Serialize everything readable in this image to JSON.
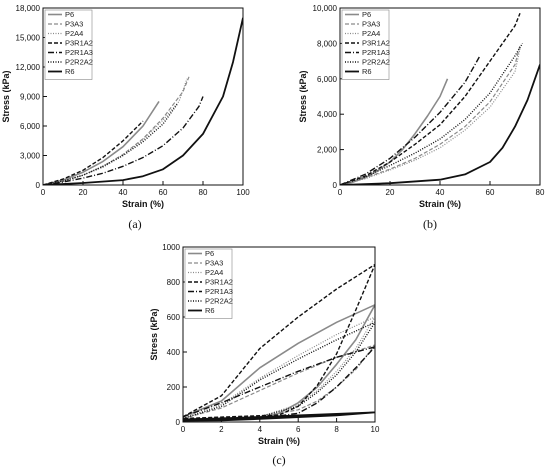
{
  "styles": {
    "P6": {
      "color": "#8a8a8a",
      "dash": "",
      "width": 1.6
    },
    "P3A3": {
      "color": "#8a8a8a",
      "dash": "4,2",
      "width": 1.2
    },
    "P2A4": {
      "color": "#8a8a8a",
      "dash": "1,1.5",
      "width": 1.2
    },
    "P3R1A2": {
      "color": "#111111",
      "dash": "4,2",
      "width": 1.4
    },
    "P2R1A3": {
      "color": "#111111",
      "dash": "6,2,1,2",
      "width": 1.4
    },
    "P2R2A2": {
      "color": "#111111",
      "dash": "1,1.5",
      "width": 1.4
    },
    "R6": {
      "color": "#111111",
      "dash": "",
      "width": 1.8
    }
  },
  "chart_data": [
    {
      "type": "line",
      "caption": "(a)",
      "xlabel": "Strain (%)",
      "ylabel": "Stress (kPa)",
      "xlim": [
        0,
        100
      ],
      "ylim": [
        0,
        18000
      ],
      "xticks": [
        "0",
        "20",
        "40",
        "60",
        "80",
        "100"
      ],
      "yticks": [
        "0",
        "3,000",
        "6,000",
        "9,000",
        "12,000",
        "15,000",
        "18,000"
      ],
      "legend_position": "top-left",
      "series": [
        {
          "name": "P6",
          "points": [
            [
              0,
              0
            ],
            [
              10,
              500
            ],
            [
              20,
              1300
            ],
            [
              30,
              2400
            ],
            [
              40,
              3900
            ],
            [
              50,
              6000
            ],
            [
              58,
              8500
            ]
          ]
        },
        {
          "name": "P3A3",
          "points": [
            [
              0,
              0
            ],
            [
              10,
              400
            ],
            [
              20,
              1000
            ],
            [
              30,
              1900
            ],
            [
              40,
              3100
            ],
            [
              50,
              4700
            ],
            [
              60,
              6800
            ],
            [
              70,
              9500
            ],
            [
              73,
              11000
            ]
          ]
        },
        {
          "name": "P2A4",
          "points": [
            [
              0,
              0
            ],
            [
              10,
              400
            ],
            [
              20,
              1000
            ],
            [
              30,
              1800
            ],
            [
              40,
              3000
            ],
            [
              50,
              4600
            ],
            [
              60,
              6600
            ],
            [
              68,
              8500
            ],
            [
              72,
              10800
            ]
          ]
        },
        {
          "name": "P3R1A2",
          "points": [
            [
              0,
              0
            ],
            [
              10,
              600
            ],
            [
              20,
              1500
            ],
            [
              30,
              2800
            ],
            [
              40,
              4500
            ],
            [
              50,
              6500
            ]
          ]
        },
        {
          "name": "P2R1A3",
          "points": [
            [
              0,
              0
            ],
            [
              10,
              300
            ],
            [
              20,
              700
            ],
            [
              30,
              1200
            ],
            [
              40,
              1900
            ],
            [
              50,
              2800
            ],
            [
              60,
              4000
            ],
            [
              70,
              5800
            ],
            [
              78,
              8000
            ],
            [
              80,
              9000
            ]
          ]
        },
        {
          "name": "P2R2A2",
          "points": [
            [
              0,
              0
            ],
            [
              10,
              400
            ],
            [
              20,
              1000
            ],
            [
              30,
              1900
            ],
            [
              40,
              3000
            ],
            [
              50,
              4400
            ],
            [
              60,
              6200
            ],
            [
              67,
              8200
            ]
          ]
        },
        {
          "name": "R6",
          "points": [
            [
              0,
              0
            ],
            [
              20,
              200
            ],
            [
              40,
              500
            ],
            [
              50,
              900
            ],
            [
              60,
              1600
            ],
            [
              70,
              3000
            ],
            [
              80,
              5200
            ],
            [
              90,
              9000
            ],
            [
              95,
              12500
            ],
            [
              100,
              17000
            ]
          ]
        }
      ]
    },
    {
      "type": "line",
      "caption": "(b)",
      "xlabel": "Strain (%)",
      "ylabel": "Stress (kPa)",
      "xlim": [
        0,
        80
      ],
      "ylim": [
        0,
        10000
      ],
      "xticks": [
        "0",
        "20",
        "40",
        "60",
        "80"
      ],
      "yticks": [
        "0",
        "2,000",
        "4,000",
        "6,000",
        "8,000",
        "10,000"
      ],
      "legend_position": "top-left",
      "series": [
        {
          "name": "P6",
          "points": [
            [
              0,
              0
            ],
            [
              5,
              150
            ],
            [
              10,
              400
            ],
            [
              15,
              800
            ],
            [
              20,
              1300
            ],
            [
              25,
              2000
            ],
            [
              30,
              2900
            ],
            [
              35,
              3900
            ],
            [
              40,
              5000
            ],
            [
              43,
              6000
            ]
          ]
        },
        {
          "name": "P3A3",
          "points": [
            [
              0,
              0
            ],
            [
              10,
              400
            ],
            [
              20,
              900
            ],
            [
              30,
              1500
            ],
            [
              40,
              2300
            ],
            [
              50,
              3300
            ],
            [
              60,
              4700
            ],
            [
              70,
              6800
            ],
            [
              72,
              7900
            ]
          ]
        },
        {
          "name": "P2A4",
          "points": [
            [
              0,
              0
            ],
            [
              10,
              350
            ],
            [
              20,
              850
            ],
            [
              30,
              1400
            ],
            [
              40,
              2100
            ],
            [
              50,
              3100
            ],
            [
              60,
              4400
            ],
            [
              70,
              6400
            ],
            [
              72,
              7700
            ]
          ]
        },
        {
          "name": "P3R1A2",
          "points": [
            [
              0,
              0
            ],
            [
              10,
              500
            ],
            [
              20,
              1300
            ],
            [
              30,
              2300
            ],
            [
              40,
              3400
            ],
            [
              50,
              5000
            ],
            [
              60,
              7000
            ],
            [
              70,
              9000
            ],
            [
              72,
              9700
            ]
          ]
        },
        {
          "name": "P2R1A3",
          "points": [
            [
              0,
              0
            ],
            [
              10,
              600
            ],
            [
              20,
              1500
            ],
            [
              30,
              2700
            ],
            [
              40,
              4100
            ],
            [
              50,
              5800
            ],
            [
              56,
              7300
            ]
          ]
        },
        {
          "name": "P2R2A2",
          "points": [
            [
              0,
              0
            ],
            [
              10,
              450
            ],
            [
              20,
              1100
            ],
            [
              30,
              1800
            ],
            [
              40,
              2600
            ],
            [
              50,
              3700
            ],
            [
              60,
              5200
            ],
            [
              70,
              7300
            ],
            [
              73,
              8000
            ]
          ]
        },
        {
          "name": "R6",
          "points": [
            [
              0,
              0
            ],
            [
              20,
              100
            ],
            [
              40,
              300
            ],
            [
              50,
              600
            ],
            [
              60,
              1300
            ],
            [
              65,
              2100
            ],
            [
              70,
              3300
            ],
            [
              75,
              4800
            ],
            [
              80,
              6800
            ]
          ]
        }
      ]
    },
    {
      "type": "line",
      "caption": "(c)",
      "xlabel": "Strain (%)",
      "ylabel": "Stress (kPa)",
      "xlim": [
        0,
        10
      ],
      "ylim": [
        0,
        1000
      ],
      "xticks": [
        "0",
        "2",
        "4",
        "6",
        "8",
        "10"
      ],
      "yticks": [
        "0",
        "200",
        "400",
        "600",
        "800",
        "1000"
      ],
      "legend_position": "top-left",
      "series": [
        {
          "name": "P6",
          "points": [
            [
              0,
              30
            ],
            [
              2,
              120
            ],
            [
              4,
              310
            ],
            [
              6,
              450
            ],
            [
              8,
              570
            ],
            [
              10,
              670
            ],
            [
              9,
              470
            ],
            [
              8,
              330
            ],
            [
              7,
              200
            ],
            [
              6,
              110
            ],
            [
              5,
              50
            ],
            [
              4,
              20
            ],
            [
              3,
              15
            ],
            [
              0,
              15
            ]
          ]
        },
        {
          "name": "P3A3",
          "points": [
            [
              0,
              20
            ],
            [
              2,
              80
            ],
            [
              4,
              180
            ],
            [
              6,
              280
            ],
            [
              8,
              370
            ],
            [
              10,
              440
            ],
            [
              9,
              300
            ],
            [
              8,
              200
            ],
            [
              7,
              120
            ],
            [
              6,
              70
            ],
            [
              4,
              30
            ],
            [
              0,
              15
            ]
          ]
        },
        {
          "name": "P2A4",
          "points": [
            [
              0,
              20
            ],
            [
              2,
              100
            ],
            [
              4,
              250
            ],
            [
              6,
              380
            ],
            [
              8,
              500
            ],
            [
              10,
              600
            ],
            [
              9,
              420
            ],
            [
              8,
              290
            ],
            [
              7,
              180
            ],
            [
              6,
              100
            ],
            [
              4,
              30
            ],
            [
              0,
              15
            ]
          ]
        },
        {
          "name": "P3R1A2",
          "points": [
            [
              0,
              30
            ],
            [
              2,
              150
            ],
            [
              4,
              420
            ],
            [
              6,
              600
            ],
            [
              8,
              760
            ],
            [
              10,
              900
            ],
            [
              9,
              640
            ],
            [
              8,
              390
            ],
            [
              7,
              210
            ],
            [
              6,
              90
            ],
            [
              5,
              40
            ],
            [
              0,
              20
            ]
          ]
        },
        {
          "name": "P2R1A3",
          "points": [
            [
              0,
              30
            ],
            [
              2,
              110
            ],
            [
              4,
              200
            ],
            [
              6,
              290
            ],
            [
              8,
              370
            ],
            [
              10,
              430
            ],
            [
              9,
              310
            ],
            [
              8,
              200
            ],
            [
              7,
              110
            ],
            [
              6,
              50
            ],
            [
              4,
              20
            ],
            [
              0,
              15
            ]
          ]
        },
        {
          "name": "P2R2A2",
          "points": [
            [
              0,
              20
            ],
            [
              2,
              90
            ],
            [
              4,
              240
            ],
            [
              6,
              360
            ],
            [
              8,
              470
            ],
            [
              10,
              570
            ],
            [
              9,
              400
            ],
            [
              8,
              270
            ],
            [
              7,
              170
            ],
            [
              6,
              90
            ],
            [
              4,
              30
            ],
            [
              0,
              15
            ]
          ]
        },
        {
          "name": "R6",
          "points": [
            [
              0,
              15
            ],
            [
              2,
              20
            ],
            [
              4,
              28
            ],
            [
              6,
              38
            ],
            [
              8,
              46
            ],
            [
              10,
              55
            ],
            [
              8,
              38
            ],
            [
              6,
              28
            ],
            [
              4,
              18
            ],
            [
              2,
              10
            ],
            [
              0,
              8
            ]
          ]
        }
      ]
    }
  ]
}
